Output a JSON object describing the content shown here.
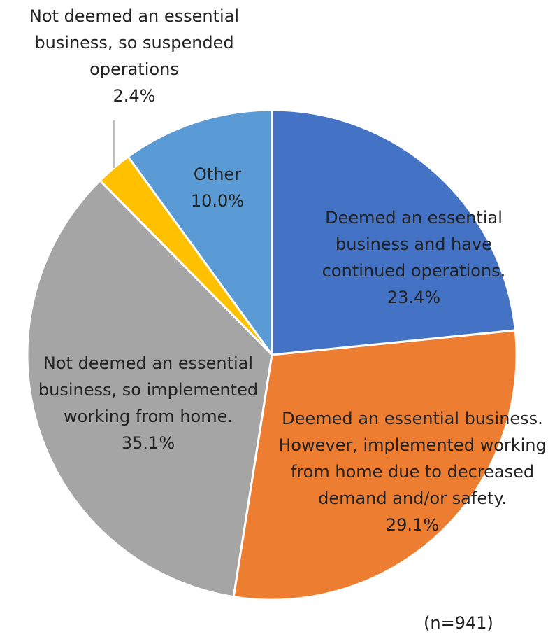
{
  "chart_data": {
    "type": "pie",
    "categories": [
      "Deemed an essential business and have continued operations.",
      "Deemed an essential business. However, implemented working from home due to decreased demand and/or safety.",
      "Not deemed an essential business, so implemented working from home.",
      "Not deemed an essential business, so suspended operations",
      "Other"
    ],
    "values": [
      23.4,
      29.1,
      35.1,
      2.4,
      10.0
    ],
    "value_labels": [
      "23.4%",
      "29.1%",
      "35.1%",
      "2.4%",
      "10.0%"
    ],
    "colors": [
      "#4472c4",
      "#ed7d31",
      "#a5a5a5",
      "#ffc000",
      "#5b9bd5"
    ],
    "note": "(n=941)"
  }
}
